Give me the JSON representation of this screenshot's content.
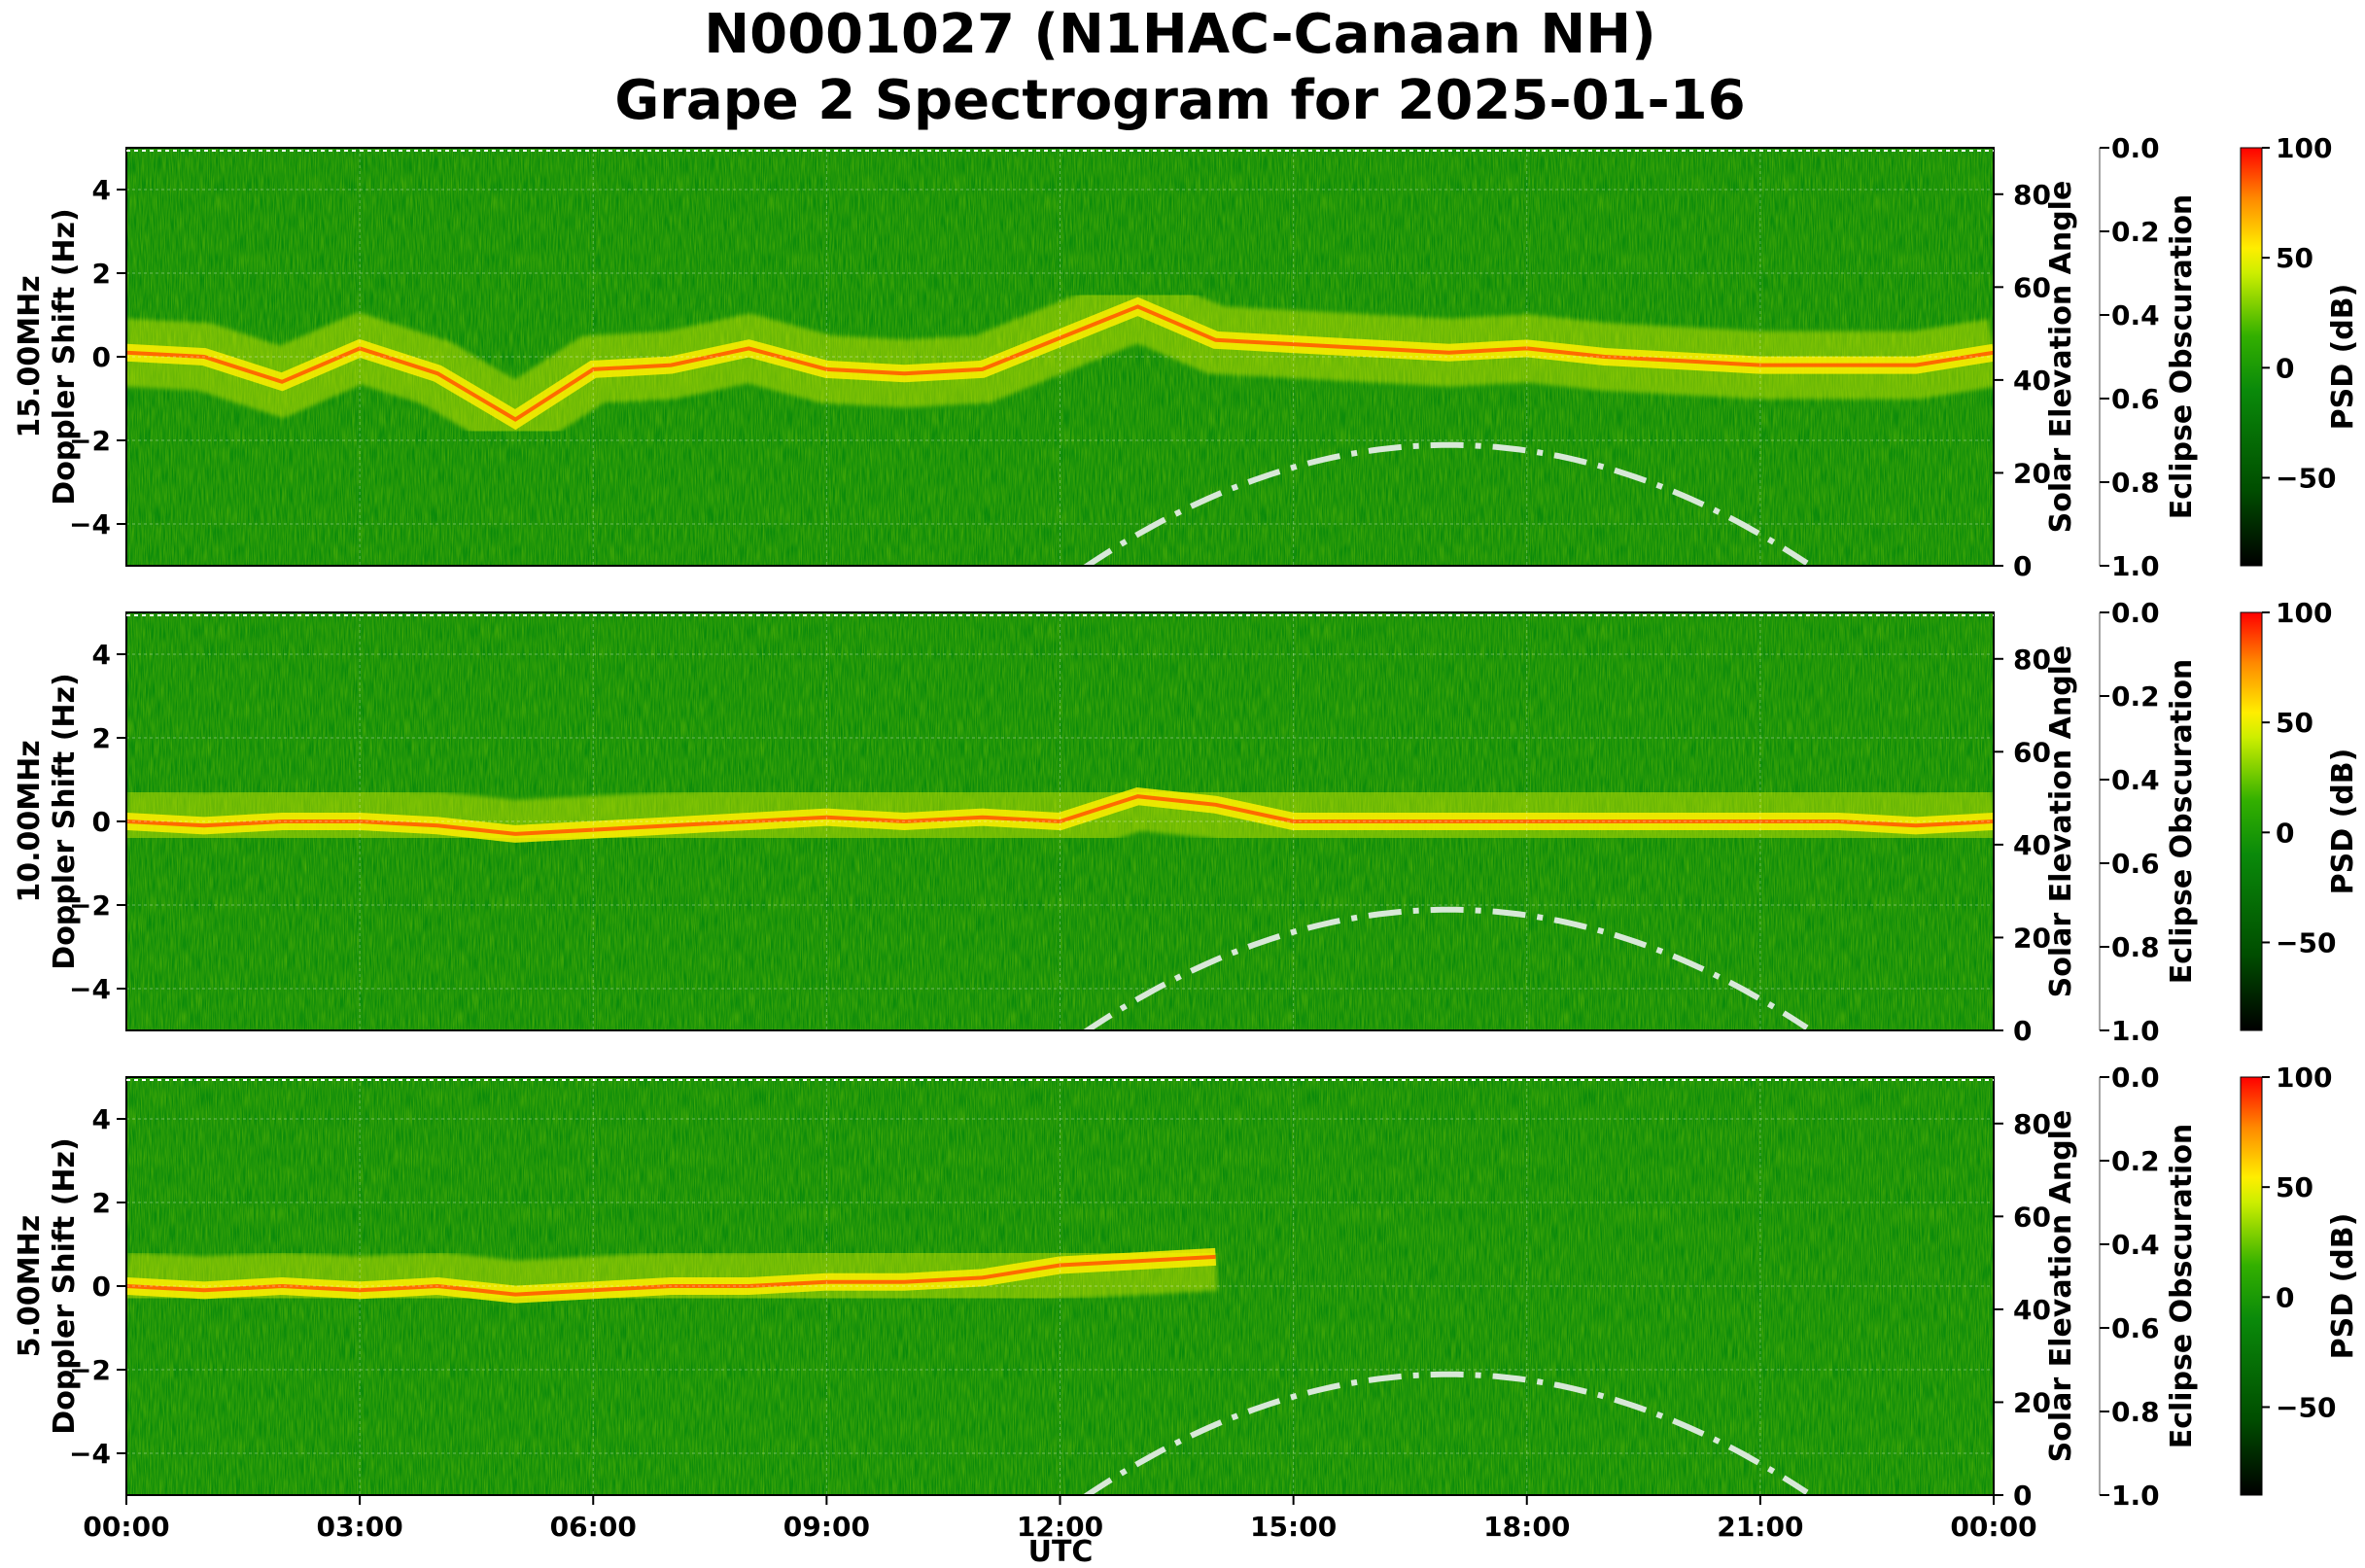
{
  "title_line1": "N0001027 (N1HAC-Canaan NH)",
  "title_line2": "Grape 2 Spectrogram for 2025-01-16",
  "colors": {
    "background_green": "#0a8a0a",
    "solar_curve": "#d8e8d8",
    "colormap": [
      "#000000",
      "#006400",
      "#22aa00",
      "#ccee00",
      "#ffee00",
      "#ff8800",
      "#ff0000"
    ]
  },
  "chart_data": [
    {
      "type": "heatmap",
      "band": "15.00MHz",
      "ylabel": "15.00MHz\nDoppler Shift (Hz)",
      "ylabel_lines": [
        "15.00MHz",
        "Doppler Shift (Hz)"
      ],
      "ylim": [
        -5,
        5
      ],
      "yticks": [
        "4",
        "2",
        "0",
        "−2",
        "−4"
      ],
      "xlim_hours": [
        0,
        24
      ],
      "solar_axis": {
        "label": "Solar Elevation Angle",
        "ylim": [
          0,
          90
        ],
        "ticks": [
          "80",
          "60",
          "40",
          "20",
          "0"
        ]
      },
      "eclipse_axis": {
        "label": "Eclipse Obscuration",
        "ylim": [
          1.0,
          0.0
        ],
        "ticks": [
          "0.0",
          "0.2",
          "0.4",
          "0.6",
          "0.8",
          "1.0"
        ]
      },
      "colorbar": {
        "label": "PSD (dB)",
        "range": [
          -90,
          100
        ],
        "ticks": [
          "100",
          "50",
          "0",
          "−50"
        ]
      },
      "solar_elevation_curve": {
        "peak_time_hours": 17.0,
        "peak_deg": 26,
        "rises_hours": 12.3,
        "sets_hours": 21.6
      },
      "doppler_trace_hz": [
        [
          0,
          0.1
        ],
        [
          1,
          0.0
        ],
        [
          2,
          -0.6
        ],
        [
          3,
          0.2
        ],
        [
          4,
          -0.4
        ],
        [
          5,
          -1.5
        ],
        [
          6,
          -0.3
        ],
        [
          7,
          -0.2
        ],
        [
          8,
          0.2
        ],
        [
          9,
          -0.3
        ],
        [
          10,
          -0.4
        ],
        [
          11,
          -0.3
        ],
        [
          13,
          1.2
        ],
        [
          14,
          0.4
        ],
        [
          15,
          0.3
        ],
        [
          16,
          0.2
        ],
        [
          17,
          0.1
        ],
        [
          18,
          0.2
        ],
        [
          19,
          0.0
        ],
        [
          20,
          -0.1
        ],
        [
          21,
          -0.2
        ],
        [
          22,
          -0.2
        ],
        [
          23,
          -0.2
        ],
        [
          24,
          0.1
        ]
      ]
    },
    {
      "type": "heatmap",
      "band": "10.00MHz",
      "ylabel": "10.00MHz\nDoppler Shift (Hz)",
      "ylabel_lines": [
        "10.00MHz",
        "Doppler Shift (Hz)"
      ],
      "ylim": [
        -5,
        5
      ],
      "yticks": [
        "4",
        "2",
        "0",
        "−2",
        "−4"
      ],
      "xlim_hours": [
        0,
        24
      ],
      "solar_axis": {
        "label": "Solar Elevation Angle",
        "ylim": [
          0,
          90
        ],
        "ticks": [
          "80",
          "60",
          "40",
          "20",
          "0"
        ]
      },
      "eclipse_axis": {
        "label": "Eclipse Obscuration",
        "ylim": [
          1.0,
          0.0
        ],
        "ticks": [
          "0.0",
          "0.2",
          "0.4",
          "0.6",
          "0.8",
          "1.0"
        ]
      },
      "colorbar": {
        "label": "PSD (dB)",
        "range": [
          -90,
          100
        ],
        "ticks": [
          "100",
          "50",
          "0",
          "−50"
        ]
      },
      "solar_elevation_curve": {
        "peak_time_hours": 17.0,
        "peak_deg": 26,
        "rises_hours": 12.3,
        "sets_hours": 21.6
      },
      "doppler_trace_hz": [
        [
          0,
          0.0
        ],
        [
          1,
          -0.1
        ],
        [
          2,
          0.0
        ],
        [
          3,
          0.0
        ],
        [
          4,
          -0.1
        ],
        [
          5,
          -0.3
        ],
        [
          6,
          -0.2
        ],
        [
          7,
          -0.1
        ],
        [
          8,
          0.0
        ],
        [
          9,
          0.1
        ],
        [
          10,
          0.0
        ],
        [
          11,
          0.1
        ],
        [
          12,
          0.0
        ],
        [
          13,
          0.6
        ],
        [
          14,
          0.4
        ],
        [
          15,
          0.0
        ],
        [
          16,
          0.0
        ],
        [
          17,
          0.0
        ],
        [
          18,
          0.0
        ],
        [
          19,
          0.0
        ],
        [
          20,
          0.0
        ],
        [
          21,
          0.0
        ],
        [
          22,
          0.0
        ],
        [
          23,
          -0.1
        ],
        [
          24,
          0.0
        ]
      ]
    },
    {
      "type": "heatmap",
      "band": "5.00MHz",
      "ylabel": "5.00MHz\nDoppler Shift (Hz)",
      "ylabel_lines": [
        "5.00MHz",
        "Doppler Shift (Hz)"
      ],
      "ylim": [
        -5,
        5
      ],
      "yticks": [
        "4",
        "2",
        "0",
        "−2",
        "−4"
      ],
      "xlim_hours": [
        0,
        24
      ],
      "xlabel": "UTC",
      "xticks": [
        "00:00",
        "03:00",
        "06:00",
        "09:00",
        "12:00",
        "15:00",
        "18:00",
        "21:00",
        "00:00"
      ],
      "solar_axis": {
        "label": "Solar Elevation Angle",
        "ylim": [
          0,
          90
        ],
        "ticks": [
          "80",
          "60",
          "40",
          "20",
          "0"
        ]
      },
      "eclipse_axis": {
        "label": "Eclipse Obscuration",
        "ylim": [
          1.0,
          0.0
        ],
        "ticks": [
          "0.0",
          "0.2",
          "0.4",
          "0.6",
          "0.8",
          "1.0"
        ]
      },
      "colorbar": {
        "label": "PSD (dB)",
        "range": [
          -90,
          100
        ],
        "ticks": [
          "100",
          "50",
          "0",
          "−50"
        ]
      },
      "solar_elevation_curve": {
        "peak_time_hours": 17.0,
        "peak_deg": 26,
        "rises_hours": 12.3,
        "sets_hours": 21.6
      },
      "doppler_trace_hz": [
        [
          0,
          0.0
        ],
        [
          1,
          -0.1
        ],
        [
          2,
          0.0
        ],
        [
          3,
          -0.1
        ],
        [
          4,
          0.0
        ],
        [
          5,
          -0.2
        ],
        [
          6,
          -0.1
        ],
        [
          7,
          0.0
        ],
        [
          8,
          0.0
        ],
        [
          9,
          0.1
        ],
        [
          10,
          0.1
        ],
        [
          11,
          0.2
        ],
        [
          12,
          0.5
        ],
        [
          13,
          0.6
        ],
        [
          14,
          0.7
        ]
      ]
    }
  ]
}
